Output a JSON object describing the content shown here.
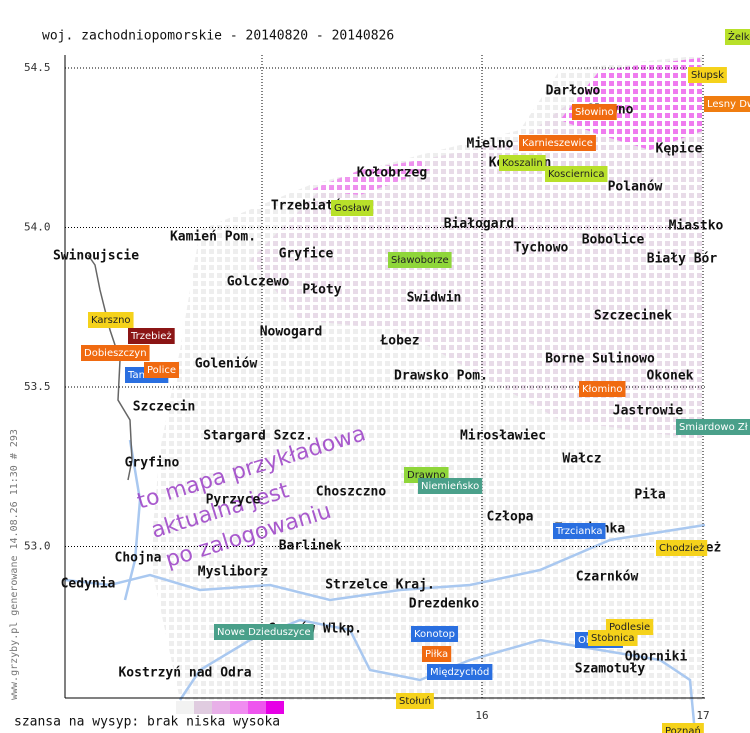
{
  "title": "woj. zachodniopomorskie - 20140820 - 20140826",
  "axis": {
    "yticks": [
      54.5,
      {
        "value": 54,
        "label": "54.0"
      },
      53.5,
      {
        "value": 53,
        "label": "53.0"
      }
    ],
    "xticks": [
      16,
      17
    ]
  },
  "places": [
    "Darłowo",
    "Sławno",
    "Mielno",
    "Koszalin",
    "Kępice",
    "Kołobrzeg",
    "Polanów",
    "Trzebiatów",
    "Białogard",
    "Miastko",
    "Kamień Pom.",
    "Bobolice",
    "Tychowo",
    "Swinoujscie",
    "Gryfice",
    "Biały Bór",
    "Golczewo",
    "Płoty",
    "Swidwin",
    "Szczecinek",
    "Nowogard",
    "Łobez",
    "Borne Sulinowo",
    "Goleniów",
    "Drawsko Pom.",
    "Okonek",
    "Szczecin",
    "Jastrowie",
    "Stargard Szcz.",
    "Mirosławiec",
    "Wałcz",
    "Gryfino",
    "Choszczno",
    "Piła",
    "Pyrzyce",
    "Człopa",
    "Trzcianka",
    "Barlinek",
    "Chodzież",
    "Chojna",
    "Mysliborz",
    "Strzelce Kraj.",
    "Czarnków",
    "Cedynia",
    "Drezdenko",
    "Gorzów Wlkp.",
    "Oborniki",
    "Szamotuły",
    "Kostrzyń nad Odra"
  ],
  "markers": [
    {
      "label": "Żelkowo",
      "color": "#b8e02a"
    },
    {
      "label": "Słupsk",
      "color": "#f5d21b"
    },
    {
      "label": "Lesny Dwór",
      "color": "#f07d10"
    },
    {
      "label": "Słowino",
      "color": "#f06a10"
    },
    {
      "label": "Karnieszewice",
      "color": "#f06a10"
    },
    {
      "label": "Koszalin",
      "color": "#b8e02a"
    },
    {
      "label": "Kosciernica",
      "color": "#b8e02a"
    },
    {
      "label": "Gosław",
      "color": "#b8e02a"
    },
    {
      "label": "Sławoborze",
      "color": "#8fd63a"
    },
    {
      "label": "Karszno",
      "color": "#f5d21b"
    },
    {
      "label": "Trzebież",
      "color": "#8b1515"
    },
    {
      "label": "Dobieszczyn",
      "color": "#f06a10"
    },
    {
      "label": "Tanowo",
      "color": "#2a6fe0"
    },
    {
      "label": "Police",
      "color": "#f06a10"
    },
    {
      "label": "Kłomino",
      "color": "#f06a10"
    },
    {
      "label": "Smiardowo Zł",
      "color": "#4aa08a"
    },
    {
      "label": "Drawno",
      "color": "#8fd63a"
    },
    {
      "label": "Niemieńsko",
      "color": "#4aa08a"
    },
    {
      "label": "Trzcianka",
      "color": "#2a6fe0"
    },
    {
      "label": "Chodzież",
      "color": "#f5d21b"
    },
    {
      "label": "Nowe Dzieduszyce",
      "color": "#4aa08a"
    },
    {
      "label": "Konotop",
      "color": "#2a6fe0"
    },
    {
      "label": "Podlesie",
      "color": "#f5d21b"
    },
    {
      "label": "Oborniki",
      "color": "#2a6fe0"
    },
    {
      "label": "Stobnica",
      "color": "#f5d21b"
    },
    {
      "label": "Piłka",
      "color": "#f06a10"
    },
    {
      "label": "Międzychód",
      "color": "#2a6fe0"
    },
    {
      "label": "Stołuń",
      "color": "#f5d21b"
    },
    {
      "label": "Poznań",
      "color": "#f5d21b"
    }
  ],
  "watermark": [
    "to mapa przykładowa",
    "aktualna jest",
    "po zalogowaniu"
  ],
  "side_note": "www.grzyby.pl generowane 14.08.26 11:30 # 293",
  "legend": {
    "label": "szansa na wysyp: brak niska wysoka",
    "colors": [
      "#ffffff",
      "#f2f2f2",
      "#e0cce0",
      "#e8b0e8",
      "#f08cf0",
      "#ee55ee",
      "#e600e6"
    ]
  }
}
